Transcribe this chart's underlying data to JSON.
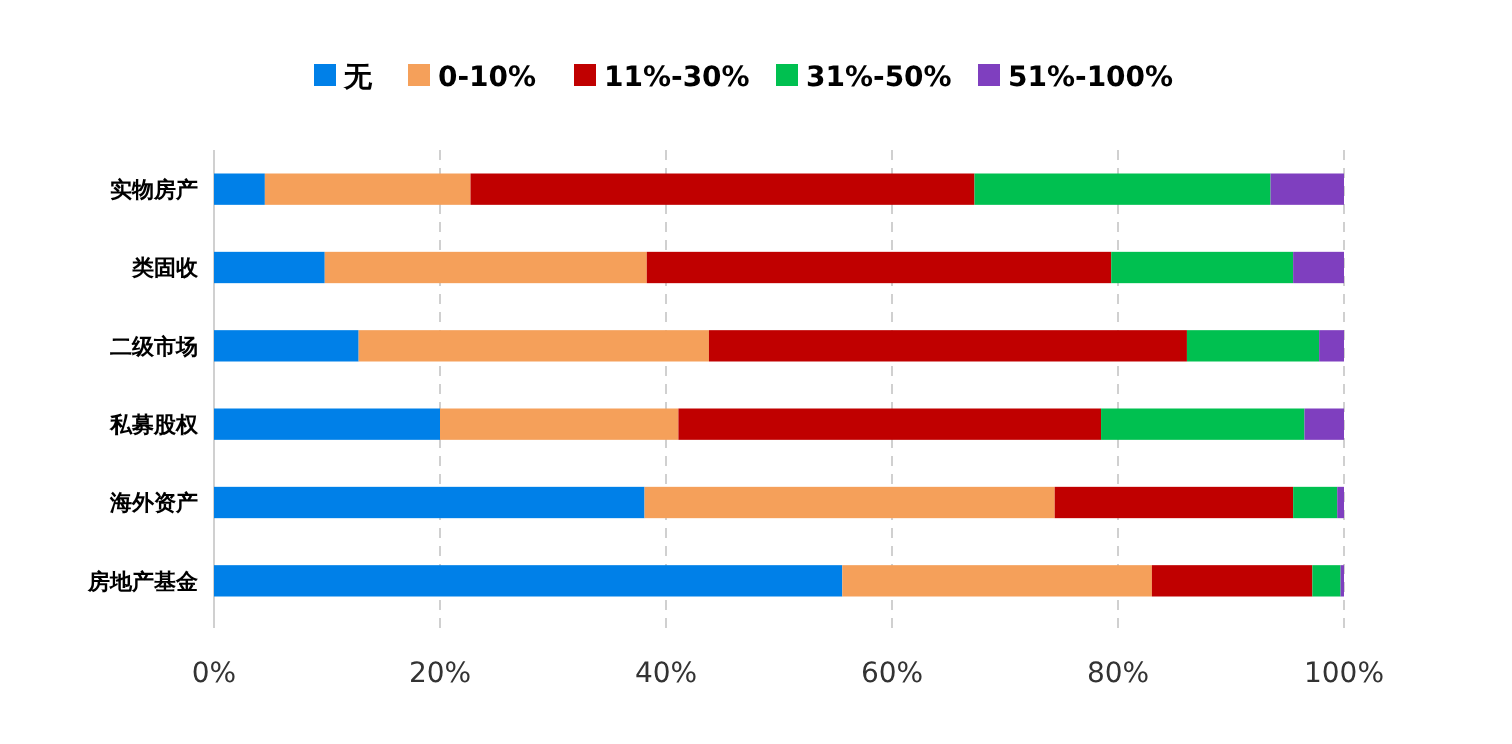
{
  "chart_data": {
    "type": "bar",
    "orientation": "horizontal",
    "stacked": true,
    "categories": [
      "实物房产",
      "类固收",
      "二级市场",
      "私募股权",
      "海外资产",
      "房地产基金"
    ],
    "series": [
      {
        "name": "无",
        "color": "#0080e8",
        "values": [
          4.5,
          9.8,
          12.8,
          20.0,
          38.1,
          55.6
        ]
      },
      {
        "name": "0-10%",
        "color": "#f5a05a",
        "values": [
          18.2,
          28.5,
          31.0,
          21.1,
          36.3,
          27.4
        ]
      },
      {
        "name": "11%-30%",
        "color": "#c00000",
        "values": [
          44.6,
          41.1,
          42.3,
          37.4,
          21.1,
          14.2
        ]
      },
      {
        "name": "31%-50%",
        "color": "#00c050",
        "values": [
          26.2,
          16.1,
          11.7,
          18.0,
          3.9,
          2.5
        ]
      },
      {
        "name": "51%-100%",
        "color": "#7f3fbf",
        "values": [
          6.5,
          4.5,
          2.2,
          3.5,
          0.6,
          0.3
        ]
      }
    ],
    "xlim": [
      0,
      100
    ],
    "xticks": [
      {
        "value": 0,
        "label": "0%"
      },
      {
        "value": 20,
        "label": "20%"
      },
      {
        "value": 40,
        "label": "40%"
      },
      {
        "value": 60,
        "label": "60%"
      },
      {
        "value": 80,
        "label": "80%"
      },
      {
        "value": 100,
        "label": "100%"
      }
    ],
    "grid": "x",
    "legend": "top"
  }
}
